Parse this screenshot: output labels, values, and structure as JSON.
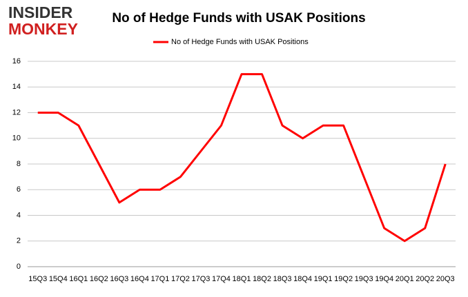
{
  "logo": [
    "INSIDER",
    "MONKEY"
  ],
  "chart_data": {
    "type": "line",
    "title": "No of Hedge Funds with USAK Positions",
    "categories": [
      "15Q3",
      "15Q4",
      "16Q1",
      "16Q2",
      "16Q3",
      "16Q4",
      "17Q1",
      "17Q2",
      "17Q3",
      "17Q4",
      "18Q1",
      "18Q2",
      "18Q3",
      "18Q4",
      "19Q1",
      "19Q2",
      "19Q3",
      "19Q4",
      "20Q1",
      "20Q2",
      "20Q3"
    ],
    "series": [
      {
        "name": "No of Hedge Funds with USAK Positions",
        "color": "#ff0000",
        "values": [
          12,
          12,
          11,
          8,
          5,
          6,
          6,
          7,
          9,
          11,
          15,
          15,
          11,
          10,
          11,
          11,
          7,
          3,
          2,
          3,
          8
        ]
      }
    ],
    "ylim": [
      0,
      16
    ],
    "yticks": [
      0,
      2,
      4,
      6,
      8,
      10,
      12,
      14,
      16
    ],
    "grid": true,
    "legend": "top"
  }
}
